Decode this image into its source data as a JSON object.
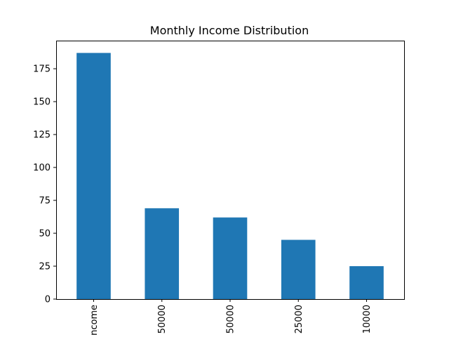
{
  "chart_data": {
    "type": "bar",
    "title": "Monthly Income Distribution",
    "xlabel": "",
    "ylabel": "",
    "categories": [
      "No Income",
      "50000",
      "50000",
      "25000",
      "10000"
    ],
    "category_labels_as_shown": [
      "ncome",
      "50000",
      "50000",
      "25000",
      "10000"
    ],
    "values": [
      187,
      69,
      62,
      45,
      25
    ],
    "ylim": [
      0,
      196.35
    ],
    "yticks": [
      0,
      25,
      50,
      75,
      100,
      125,
      150,
      175
    ],
    "bar_color": "#1f77b4",
    "grid": false,
    "legend": "none"
  }
}
